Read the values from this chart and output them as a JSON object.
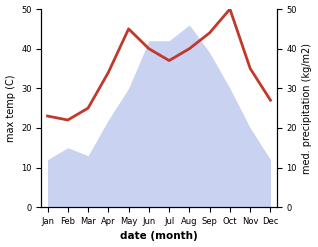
{
  "months": [
    "Jan",
    "Feb",
    "Mar",
    "Apr",
    "May",
    "Jun",
    "Jul",
    "Aug",
    "Sep",
    "Oct",
    "Nov",
    "Dec"
  ],
  "temperature": [
    23,
    22,
    25,
    34,
    45,
    40,
    37,
    40,
    44,
    50,
    35,
    27
  ],
  "precipitation": [
    12,
    15,
    13,
    22,
    30,
    42,
    42,
    46,
    39,
    30,
    20,
    12
  ],
  "temp_color": "#c0392b",
  "precip_fill_color": "#c5cdf0",
  "ylim": [
    0,
    50
  ],
  "yticks": [
    0,
    10,
    20,
    30,
    40,
    50
  ],
  "xlabel": "date (month)",
  "ylabel_left": "max temp (C)",
  "ylabel_right": "med. precipitation (kg/m2)"
}
